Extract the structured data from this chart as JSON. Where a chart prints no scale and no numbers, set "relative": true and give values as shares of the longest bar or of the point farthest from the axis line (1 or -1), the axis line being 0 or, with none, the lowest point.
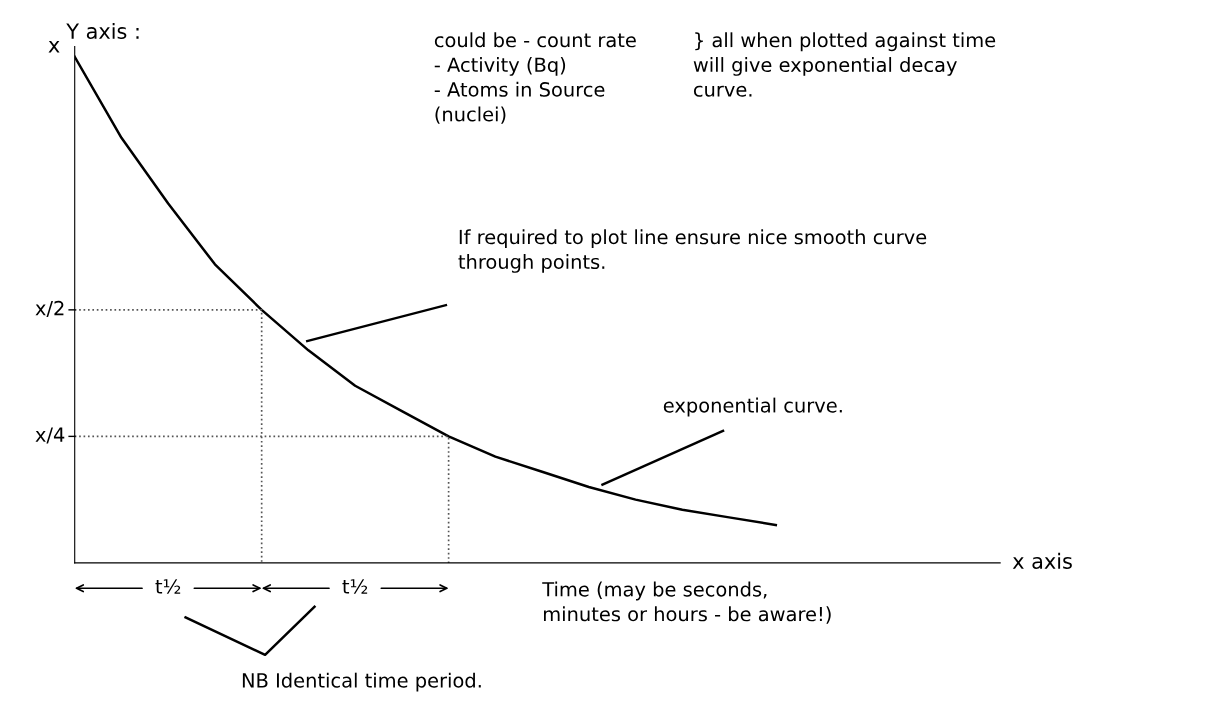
{
  "chart_data": {
    "type": "line",
    "relative": true,
    "ylabel": "Y axis :",
    "categories": [
      null,
      null,
      null,
      null,
      null,
      null,
      null,
      null,
      null,
      null,
      null,
      null,
      null,
      null,
      null,
      null
    ],
    "series": [
      {
        "color": "#000000",
        "values": [
          1,
          0.84,
          0.71,
          0.59,
          0.5,
          0.42,
          0.35,
          0.3,
          0.25,
          0.21,
          0.18,
          0.15,
          0.125,
          0.105,
          0.09,
          0.075
        ]
      }
    ],
    "ref_lines": [
      {
        "axis": "y",
        "value": 0.5,
        "label": "x/2",
        "line_style": "dotted",
        "color": "#555555"
      },
      {
        "axis": "y",
        "value": 0.25,
        "label": "x/4",
        "line_style": "dotted",
        "color": "#555555"
      }
    ],
    "annotations": [
      "x",
      "could be - count rate\n- Activity (Bq)\n- Atoms in Source\n(nuclei)",
      "} all when plotted against time\nwill give exponential decay\ncurve.",
      "If required to plot line ensure nice smooth curve\nthrough points.",
      "exponential curve.",
      "t½",
      "t½",
      "x axis",
      "Time (may be seconds,\nminutes or hours - be aware!)",
      "NB Identical time period."
    ]
  }
}
